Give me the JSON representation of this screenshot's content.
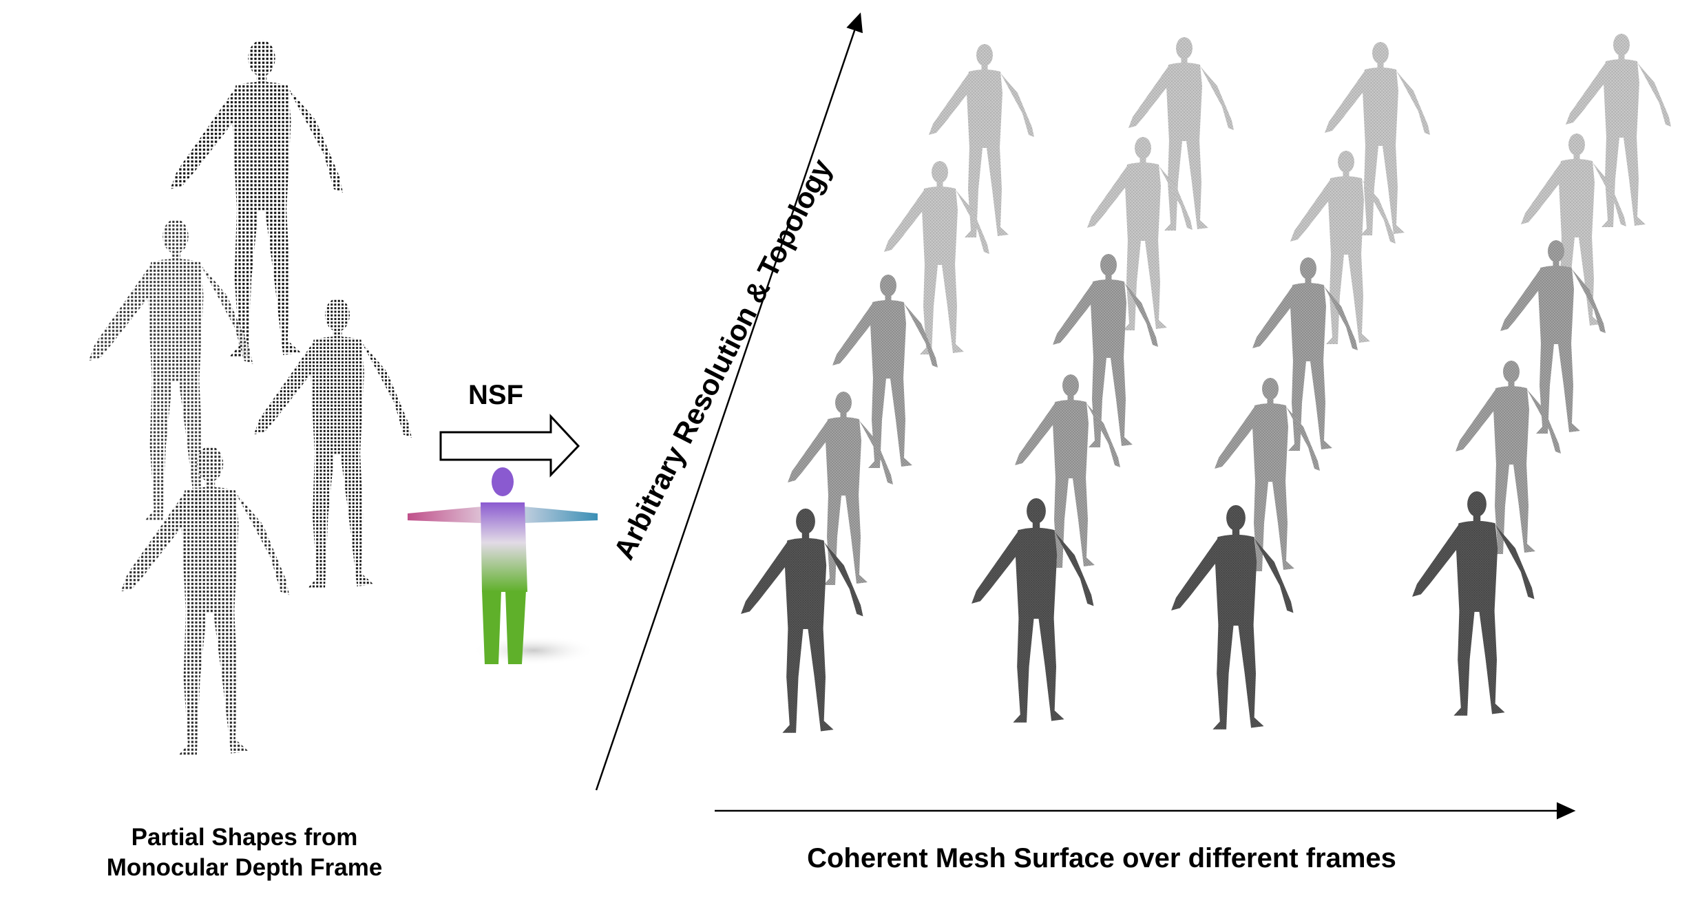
{
  "captions": {
    "left_line1": "Partial Shapes from",
    "left_line2": "Monocular Depth Frame",
    "right": "Coherent Mesh Surface over different frames",
    "method": "NSF",
    "vertical_axis": "Arbitrary Resolution & Topology"
  },
  "colors": {
    "partial_points": "#111111",
    "mesh_light": "#b8b8b8",
    "mesh_mid": "#8f8f8f",
    "mesh_dark": "#4a4a4a",
    "canonical_top": "#8a5ad0",
    "canonical_mid": "#d9d2e8",
    "canonical_bottom": "#5fb02a"
  }
}
